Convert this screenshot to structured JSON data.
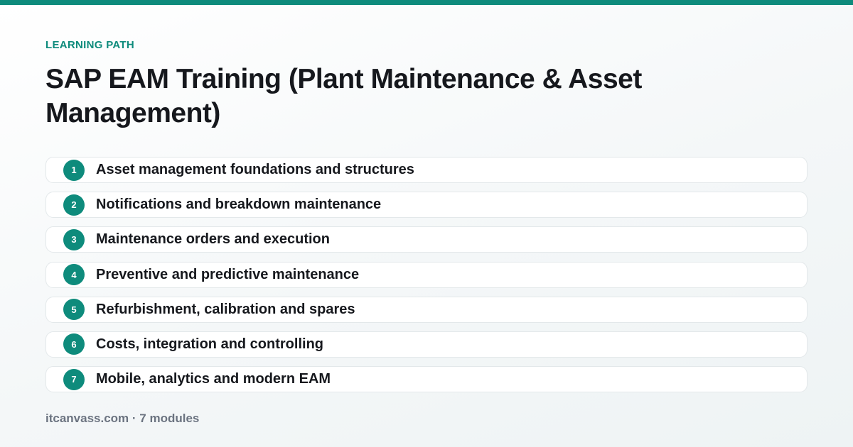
{
  "header": {
    "eyebrow": "LEARNING PATH",
    "title": "SAP EAM Training (Plant Maintenance & Asset Management)"
  },
  "modules": [
    {
      "number": "1",
      "label": "Asset management foundations and structures"
    },
    {
      "number": "2",
      "label": "Notifications and breakdown maintenance"
    },
    {
      "number": "3",
      "label": "Maintenance orders and execution"
    },
    {
      "number": "4",
      "label": "Preventive and predictive maintenance"
    },
    {
      "number": "5",
      "label": "Refurbishment, calibration and spares"
    },
    {
      "number": "6",
      "label": "Costs, integration and controlling"
    },
    {
      "number": "7",
      "label": "Mobile, analytics and modern EAM"
    }
  ],
  "footer": {
    "text": "itcanvass.com · 7 modules"
  },
  "colors": {
    "accent": "#0e8b7c",
    "text": "#16181d",
    "muted": "#6b7380",
    "card_border": "#e3e8ea"
  }
}
